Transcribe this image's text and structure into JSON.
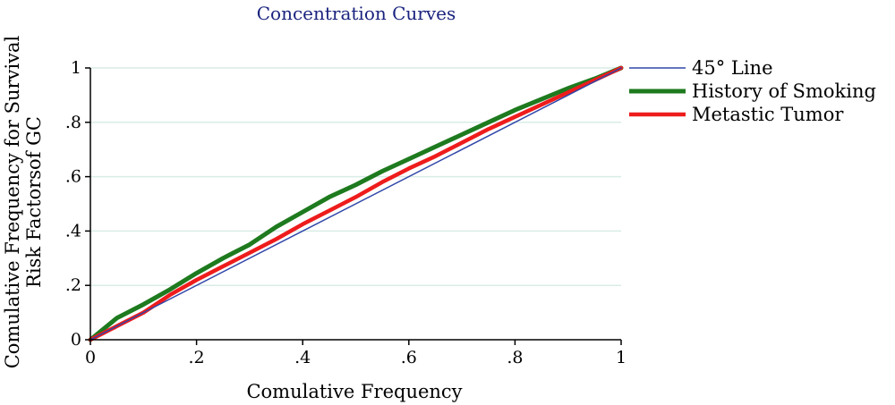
{
  "chart_data": {
    "type": "line",
    "title": "Concentration Curves",
    "xlabel": "Comulative Frequency",
    "ylabel_lines": [
      "Comulative Frequency for Survival",
      "Risk Factorsof GC"
    ],
    "xlim": [
      0,
      1
    ],
    "ylim": [
      0,
      1
    ],
    "x_ticks": [
      0,
      0.2,
      0.4,
      0.6,
      0.8,
      1
    ],
    "x_tick_labels": [
      "0",
      ".2",
      ".4",
      ".6",
      ".8",
      "1"
    ],
    "y_ticks": [
      0,
      0.2,
      0.4,
      0.6,
      0.8,
      1
    ],
    "y_tick_labels": [
      "0",
      ".2",
      ".4",
      ".6",
      ".8",
      "1"
    ],
    "grid": "horizontal",
    "grid_color": "#d9ece6",
    "legend_position": "right",
    "series": [
      {
        "name": "45° Line",
        "color": "#3046a8",
        "points": [
          [
            0,
            0
          ],
          [
            1,
            1
          ]
        ]
      },
      {
        "name": "History of Smoking",
        "color": "#1e7a1e",
        "points": [
          [
            0,
            0
          ],
          [
            0.05,
            0.08
          ],
          [
            0.1,
            0.13
          ],
          [
            0.15,
            0.185
          ],
          [
            0.2,
            0.245
          ],
          [
            0.25,
            0.3
          ],
          [
            0.3,
            0.35
          ],
          [
            0.35,
            0.415
          ],
          [
            0.4,
            0.47
          ],
          [
            0.45,
            0.525
          ],
          [
            0.5,
            0.57
          ],
          [
            0.55,
            0.62
          ],
          [
            0.6,
            0.665
          ],
          [
            0.65,
            0.71
          ],
          [
            0.7,
            0.755
          ],
          [
            0.75,
            0.8
          ],
          [
            0.8,
            0.845
          ],
          [
            0.85,
            0.885
          ],
          [
            0.9,
            0.925
          ],
          [
            0.95,
            0.96
          ],
          [
            1,
            1
          ]
        ]
      },
      {
        "name": "Metastic Tumor",
        "color": "#ee1c1c",
        "points": [
          [
            0,
            0
          ],
          [
            0.05,
            0.05
          ],
          [
            0.1,
            0.1
          ],
          [
            0.15,
            0.165
          ],
          [
            0.2,
            0.22
          ],
          [
            0.25,
            0.27
          ],
          [
            0.3,
            0.32
          ],
          [
            0.35,
            0.37
          ],
          [
            0.4,
            0.425
          ],
          [
            0.45,
            0.475
          ],
          [
            0.5,
            0.525
          ],
          [
            0.55,
            0.58
          ],
          [
            0.6,
            0.63
          ],
          [
            0.65,
            0.675
          ],
          [
            0.7,
            0.725
          ],
          [
            0.75,
            0.775
          ],
          [
            0.8,
            0.82
          ],
          [
            0.85,
            0.865
          ],
          [
            0.9,
            0.91
          ],
          [
            0.95,
            0.955
          ],
          [
            1,
            1
          ]
        ]
      }
    ]
  }
}
